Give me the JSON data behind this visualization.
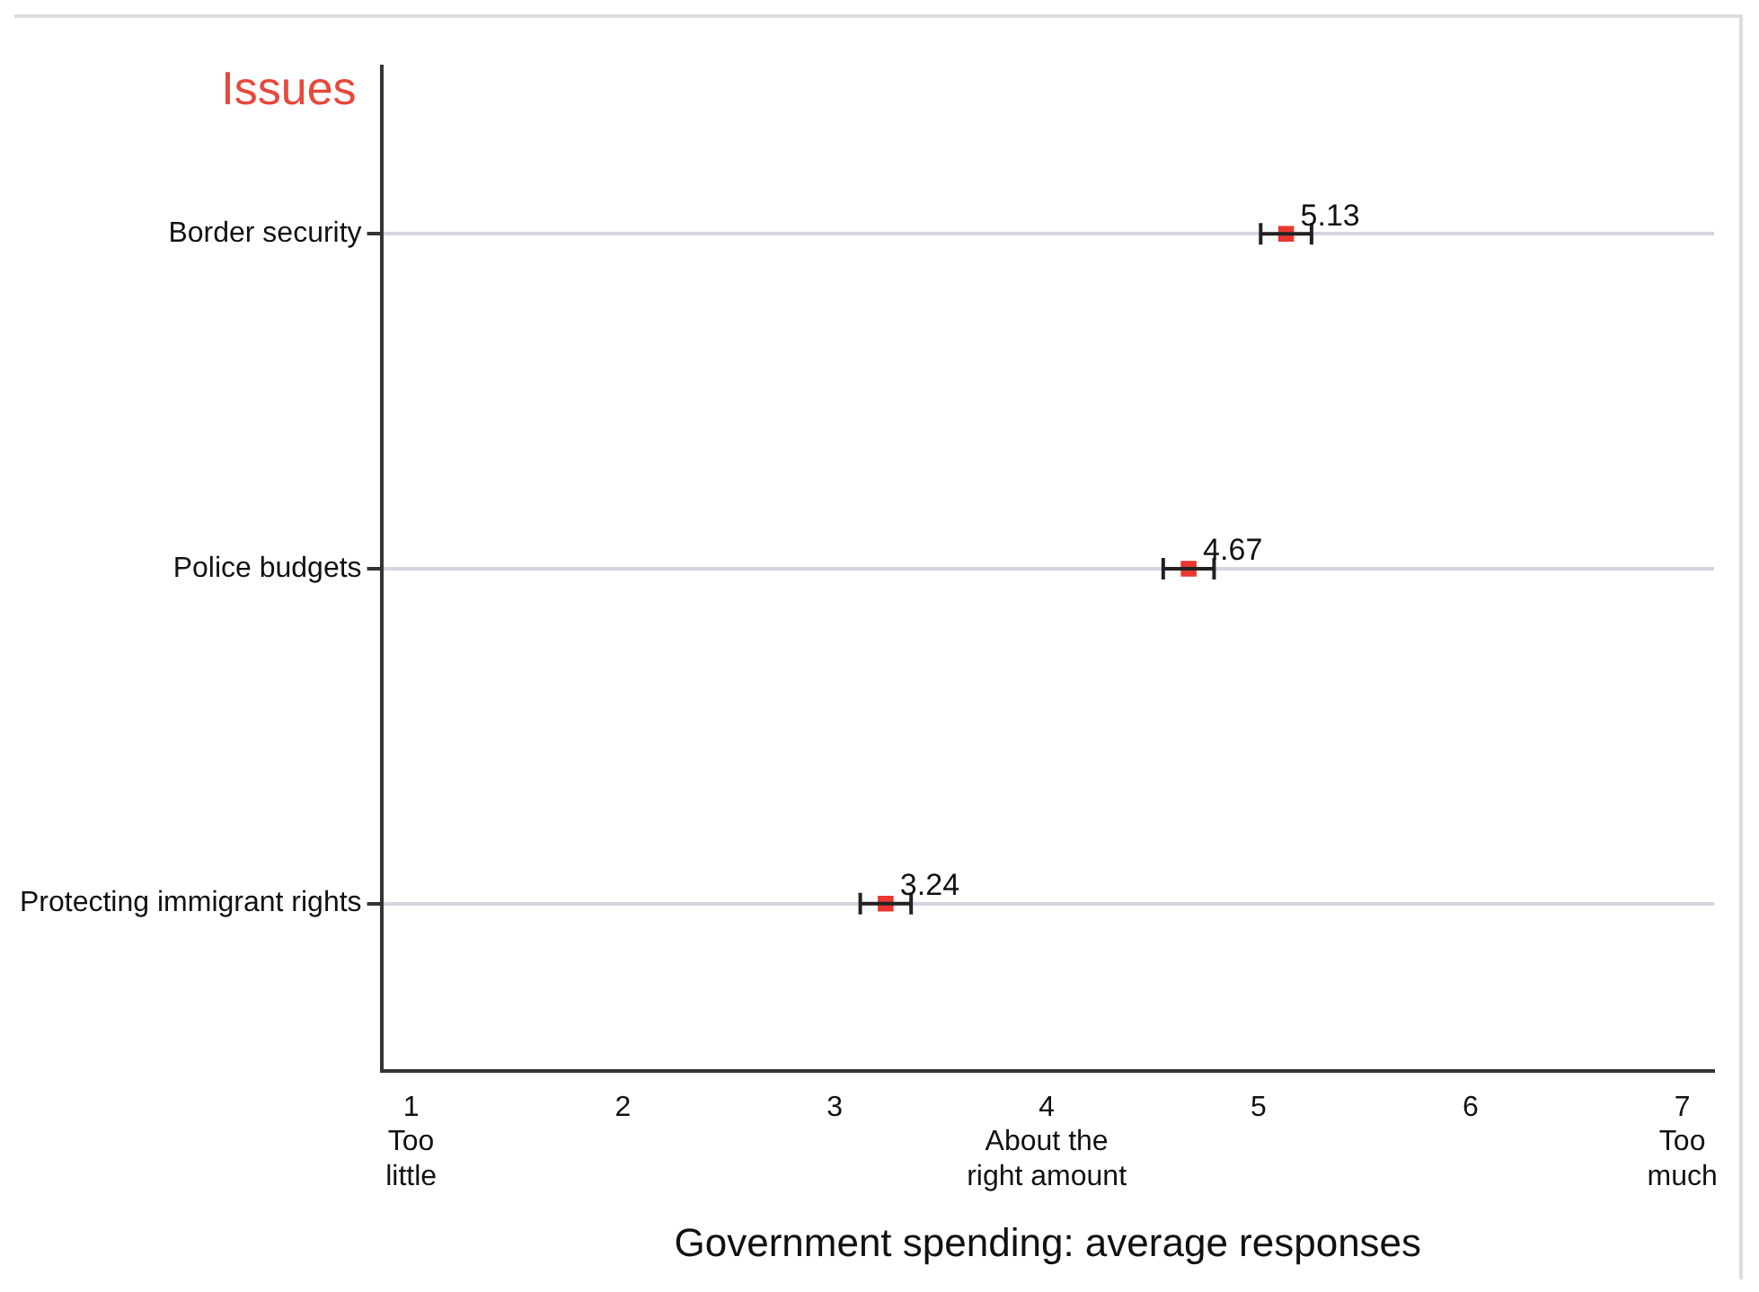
{
  "chart_data": {
    "type": "scatter",
    "orientation": "horizontal",
    "ylabel": "Issues",
    "xlabel": "Government spending: average responses",
    "categories": [
      "Border security",
      "Police budgets",
      "Protecting immigrant rights"
    ],
    "series": [
      {
        "color": "#e8382f",
        "values": [
          5.13,
          4.67,
          3.24
        ],
        "errors": [
          0.12,
          0.12,
          0.12
        ]
      }
    ],
    "data_labels": true,
    "marker": "square",
    "grid": "y",
    "legend": false,
    "xlim": [
      0.86,
      7.15
    ],
    "xticks": [
      {
        "value": 1,
        "label": "1\nToo\nlittle"
      },
      2,
      3,
      {
        "value": 4,
        "label": "4\nAbout the\nright amount"
      },
      5,
      6,
      {
        "value": 7,
        "label": "7\nToo\nmuch"
      }
    ]
  }
}
